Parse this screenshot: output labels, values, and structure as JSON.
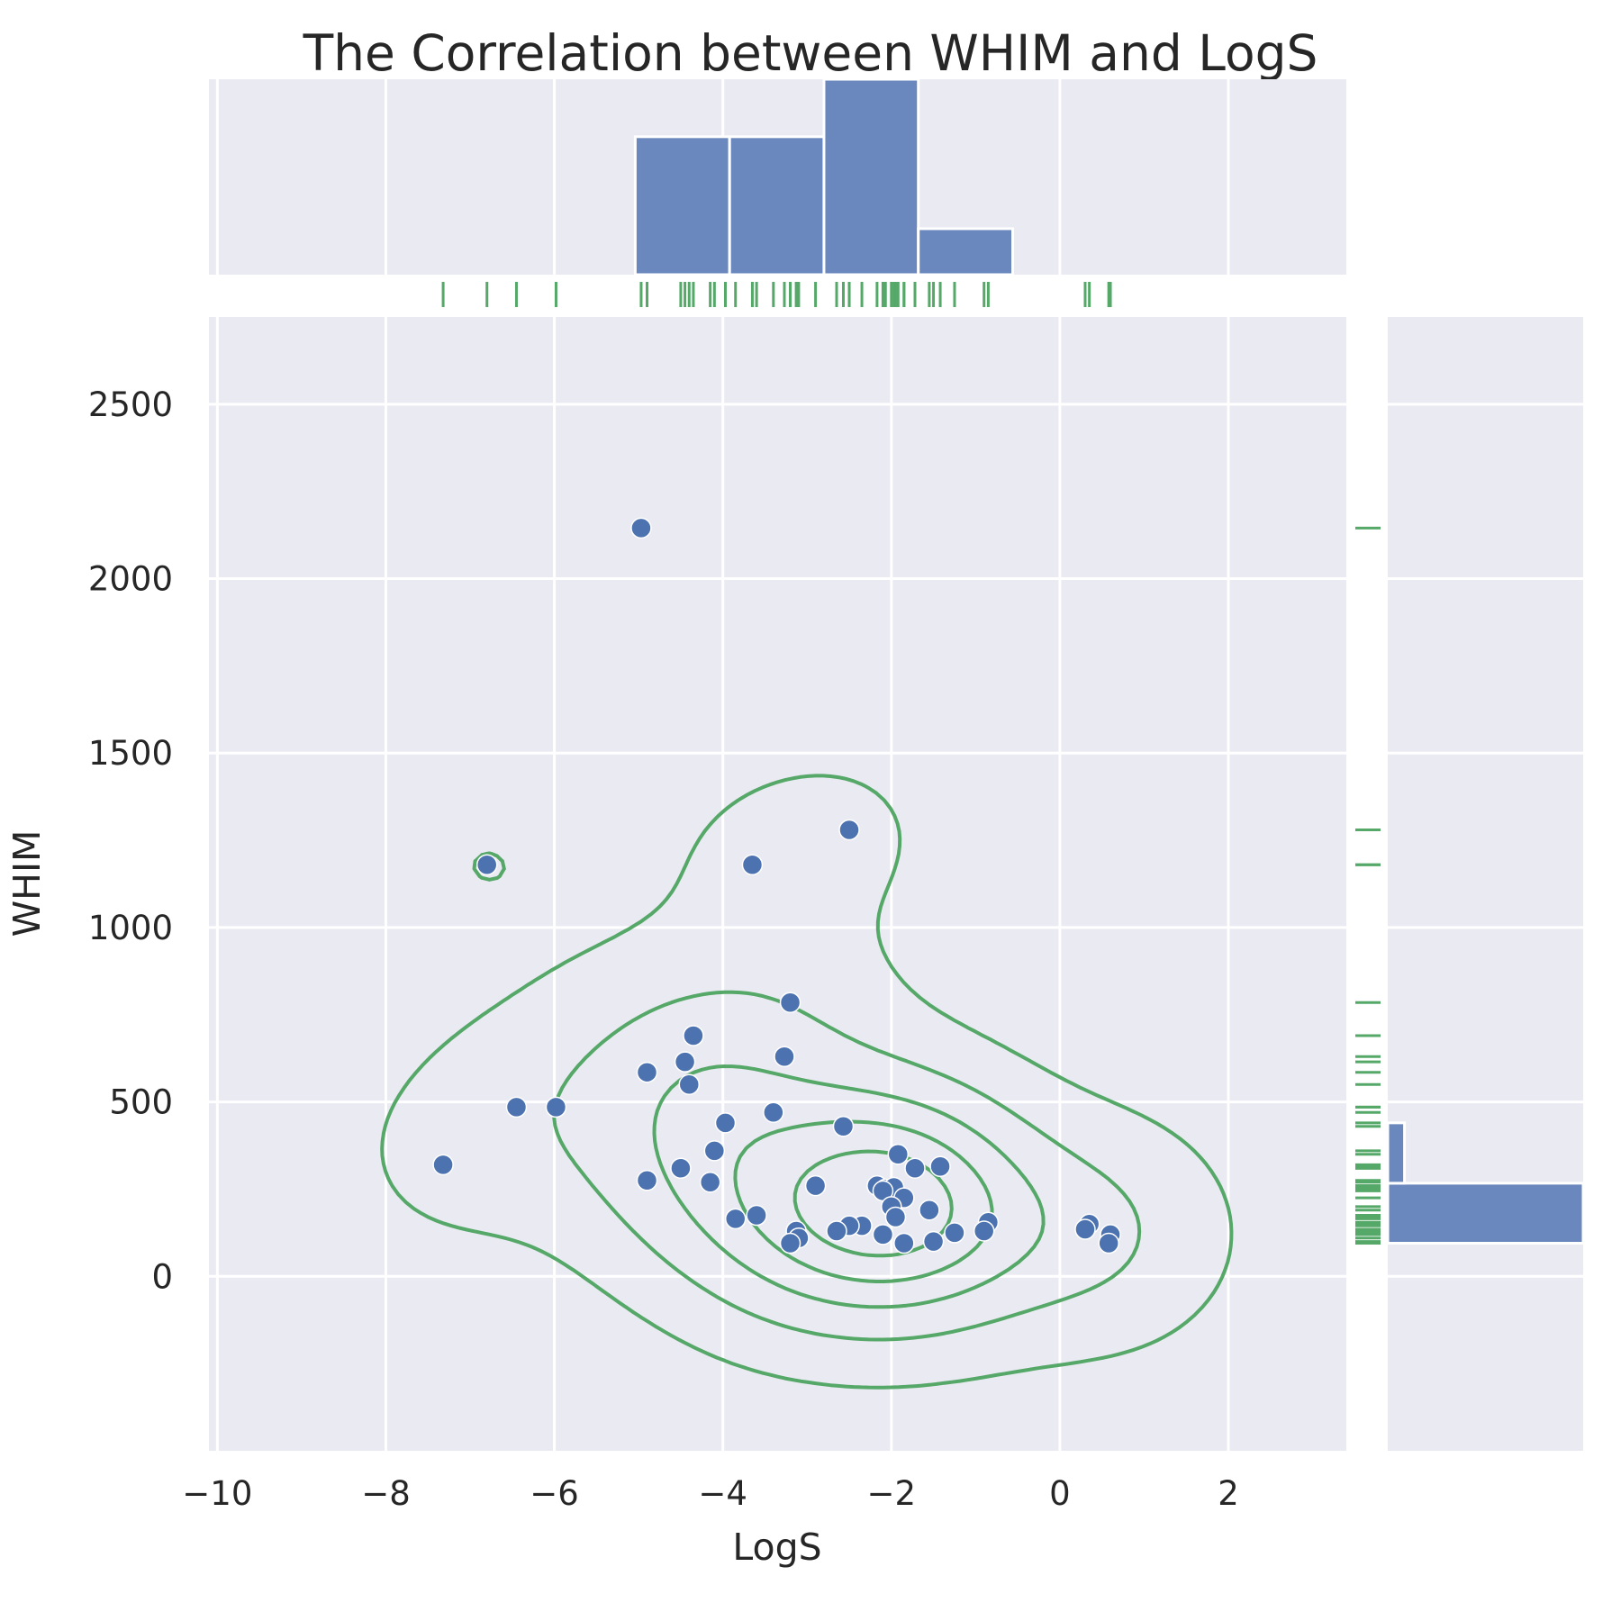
{
  "chart_data": {
    "type": "scatter",
    "title": "The Correlation between WHIM and LogS",
    "xlabel": "LogS",
    "ylabel": "WHIM",
    "xlim": [
      -10.1,
      3.4
    ],
    "ylim": [
      -500,
      2750
    ],
    "x_ticks": [
      -10,
      -8,
      -6,
      -4,
      -2,
      0,
      2
    ],
    "x_tick_labels": [
      "−10",
      "−8",
      "−6",
      "−4",
      "−2",
      "0",
      "2"
    ],
    "y_ticks": [
      0,
      500,
      1000,
      1500,
      2000,
      2500
    ],
    "y_tick_labels": [
      "0",
      "500",
      "1000",
      "1500",
      "2000",
      "2500"
    ],
    "grid": true,
    "colors": {
      "points": "#4c72b0",
      "kde": "#55a868",
      "rug": "#55a868",
      "hist": "#6a88bd",
      "panel": "#eaeaf2"
    },
    "points": [
      {
        "x": -4.97,
        "y": 2145
      },
      {
        "x": -2.5,
        "y": 1280
      },
      {
        "x": -6.8,
        "y": 1180
      },
      {
        "x": -3.65,
        "y": 1180
      },
      {
        "x": -3.2,
        "y": 785
      },
      {
        "x": -4.35,
        "y": 690
      },
      {
        "x": -3.27,
        "y": 630
      },
      {
        "x": -4.45,
        "y": 615
      },
      {
        "x": -4.9,
        "y": 585
      },
      {
        "x": -4.4,
        "y": 550
      },
      {
        "x": -6.45,
        "y": 485
      },
      {
        "x": -5.98,
        "y": 485
      },
      {
        "x": -3.4,
        "y": 470
      },
      {
        "x": -3.97,
        "y": 440
      },
      {
        "x": -2.57,
        "y": 430
      },
      {
        "x": -4.1,
        "y": 360
      },
      {
        "x": -1.92,
        "y": 350
      },
      {
        "x": -1.72,
        "y": 310
      },
      {
        "x": -1.42,
        "y": 315
      },
      {
        "x": -7.32,
        "y": 320
      },
      {
        "x": -4.5,
        "y": 310
      },
      {
        "x": -4.9,
        "y": 275
      },
      {
        "x": -4.15,
        "y": 270
      },
      {
        "x": -2.9,
        "y": 260
      },
      {
        "x": -2.17,
        "y": 260
      },
      {
        "x": -2.07,
        "y": 250
      },
      {
        "x": -1.97,
        "y": 255
      },
      {
        "x": -2.1,
        "y": 245
      },
      {
        "x": -1.85,
        "y": 225
      },
      {
        "x": -2.0,
        "y": 200
      },
      {
        "x": -1.55,
        "y": 190
      },
      {
        "x": -3.6,
        "y": 175
      },
      {
        "x": -3.85,
        "y": 165
      },
      {
        "x": -1.95,
        "y": 170
      },
      {
        "x": -0.85,
        "y": 155
      },
      {
        "x": 0.35,
        "y": 150
      },
      {
        "x": -2.35,
        "y": 145
      },
      {
        "x": -2.5,
        "y": 145
      },
      {
        "x": -3.13,
        "y": 130
      },
      {
        "x": -2.65,
        "y": 130
      },
      {
        "x": -0.9,
        "y": 130
      },
      {
        "x": 0.3,
        "y": 135
      },
      {
        "x": 0.6,
        "y": 120
      },
      {
        "x": -1.25,
        "y": 125
      },
      {
        "x": -2.1,
        "y": 120
      },
      {
        "x": -3.1,
        "y": 110
      },
      {
        "x": -3.2,
        "y": 95
      },
      {
        "x": -1.85,
        "y": 95
      },
      {
        "x": -1.5,
        "y": 100
      },
      {
        "x": 0.58,
        "y": 95
      }
    ],
    "x_histogram": {
      "bin_edges": [
        -5.04,
        -3.92,
        -2.8,
        -1.68,
        -0.56
      ],
      "counts": [
        12,
        12,
        17,
        4
      ]
    },
    "y_histogram": {
      "bin_edges": [
        95,
        267,
        440
      ],
      "counts": [
        35,
        3
      ]
    }
  }
}
